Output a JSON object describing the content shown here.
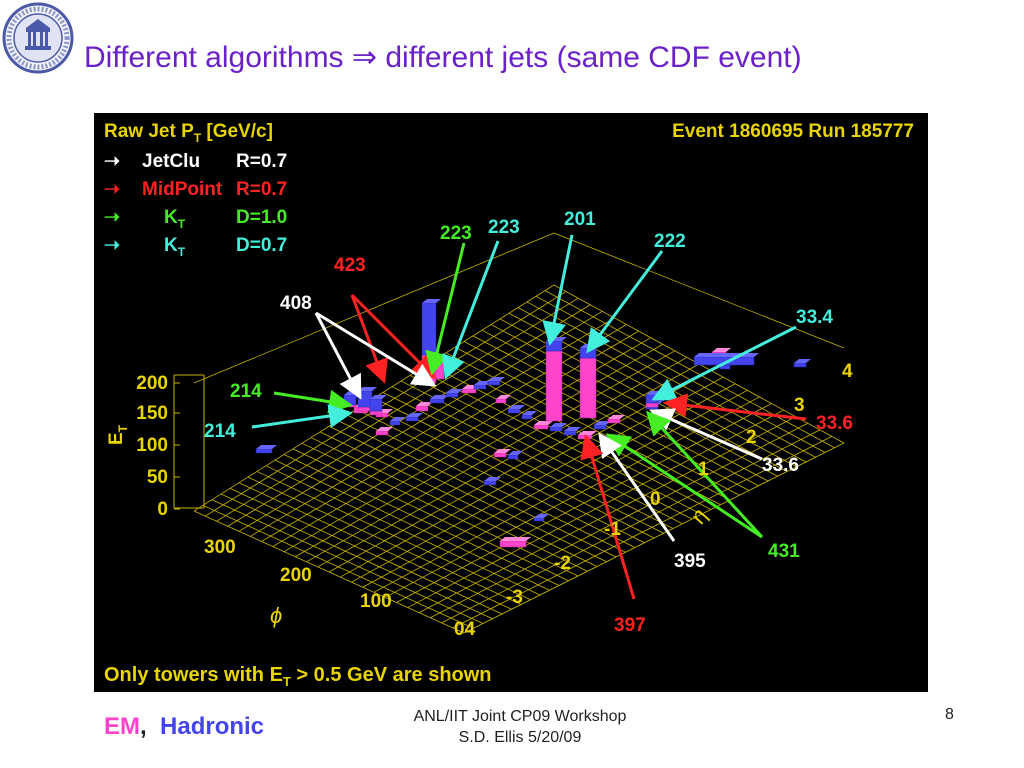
{
  "slide": {
    "title": "Different algorithms ⇒ different jets (same CDF event)",
    "logo_text": "UNIVERSITY OF WASHINGTON 1861",
    "footer": {
      "em_label": "EM",
      "separator": ",",
      "hadronic_label": "Hadronic",
      "workshop": "ANL/IIT Joint CP09 Workshop",
      "author_date": "S.D. Ellis 5/20/09",
      "page_number": "8"
    },
    "colors": {
      "title": "#6b21c8",
      "em": "#ff44cc",
      "hadronic": "#4444ee",
      "jetclu": "#ffffff",
      "midpoint": "#ff2222",
      "kt_10": "#44ee22",
      "kt_07": "#44eedd",
      "grid": "#c8b400",
      "axis_text": "#e8d400"
    }
  },
  "plot": {
    "header_left": "Raw Jet P",
    "header_left_sub": "T",
    "header_left_unit": " [GeV/c]",
    "header_right": "Event 1860695   Run 185777",
    "footnote": "Only towers with E",
    "footnote_sub": "T",
    "footnote_rest": " > 0.5 GeV are shown",
    "legend": [
      {
        "arrow": "➝",
        "name": "JetClu",
        "sub": "",
        "param": "R=0.7",
        "color": "#ffffff"
      },
      {
        "arrow": "➝",
        "name": "MidPoint",
        "sub": "",
        "param": "R=0.7",
        "color": "#ff2222"
      },
      {
        "arrow": "➝",
        "name": "K",
        "sub": "T",
        "param": "D=1.0",
        "color": "#44ee22"
      },
      {
        "arrow": "➝",
        "name": "K",
        "sub": "T",
        "param": "D=0.7",
        "color": "#44eedd"
      }
    ],
    "et_axis": {
      "label": "E",
      "label_sub": "T",
      "ticks": [
        "200",
        "150",
        "100",
        "50",
        "0"
      ]
    },
    "phi_axis": {
      "label": "ϕ",
      "ticks": [
        "300",
        "200",
        "100",
        "04"
      ]
    },
    "eta_axis": {
      "label": "η",
      "ticks": [
        "4",
        "3",
        "2",
        "1",
        "0",
        "-1",
        "-2",
        "-3"
      ]
    },
    "jet_labels": [
      {
        "text": "423",
        "color": "#ff2222"
      },
      {
        "text": "408",
        "color": "#ffffff"
      },
      {
        "text": "223",
        "color": "#44ee22"
      },
      {
        "text": "223",
        "color": "#44eedd"
      },
      {
        "text": "201",
        "color": "#44eedd"
      },
      {
        "text": "222",
        "color": "#44eedd"
      },
      {
        "text": "33.4",
        "color": "#44eedd"
      },
      {
        "text": "33.6",
        "color": "#ff2222"
      },
      {
        "text": "33.6",
        "color": "#ffffff"
      },
      {
        "text": "214",
        "color": "#44ee22"
      },
      {
        "text": "214",
        "color": "#44eedd"
      },
      {
        "text": "431",
        "color": "#44ee22"
      },
      {
        "text": "395",
        "color": "#ffffff"
      },
      {
        "text": "397",
        "color": "#ff2222"
      }
    ]
  }
}
